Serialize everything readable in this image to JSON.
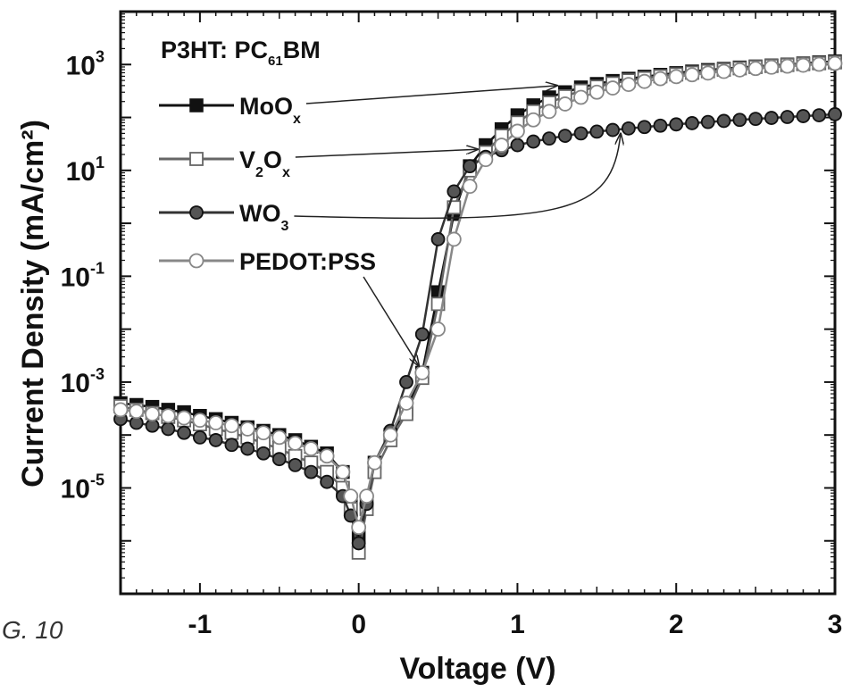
{
  "figure_label": "G. 10",
  "chart_data": {
    "type": "line",
    "title": "",
    "xlabel": "Voltage (V)",
    "ylabel": "Current Density (mA/cm²)",
    "xlim": [
      -1.5,
      3.0
    ],
    "ylim": [
      1e-07,
      10000
    ],
    "yscale": "log",
    "grid": false,
    "x_ticks": [
      -1,
      0,
      1,
      2,
      3
    ],
    "x_tick_labels": [
      "-1",
      "0",
      "1",
      "2",
      "3"
    ],
    "y_ticks": [
      1e-05,
      0.001,
      0.1,
      10,
      1000
    ],
    "y_tick_labels": [
      {
        "base": "10",
        "exp": "-5"
      },
      {
        "base": "10",
        "exp": "-3"
      },
      {
        "base": "10",
        "exp": "-1"
      },
      {
        "base": "10",
        "exp": "1"
      },
      {
        "base": "10",
        "exp": "3"
      }
    ],
    "legend_placement": "top-left",
    "legend_title": {
      "main": "P3HT: PC",
      "sub": "61",
      "tail": "BM"
    },
    "series": [
      {
        "name": "MoOx",
        "label_parts": {
          "main": "MoO",
          "sub": "x",
          "tail": ""
        },
        "marker": "square-filled",
        "color": "#111111",
        "x": [
          -1.5,
          -1.4,
          -1.3,
          -1.2,
          -1.1,
          -1.0,
          -0.9,
          -0.8,
          -0.7,
          -0.6,
          -0.5,
          -0.4,
          -0.3,
          -0.2,
          -0.1,
          -0.05,
          0.0,
          0.05,
          0.1,
          0.2,
          0.3,
          0.4,
          0.5,
          0.6,
          0.7,
          0.8,
          0.9,
          1.0,
          1.1,
          1.2,
          1.3,
          1.4,
          1.5,
          1.6,
          1.7,
          1.8,
          1.9,
          2.0,
          2.1,
          2.2,
          2.3,
          2.4,
          2.5,
          2.6,
          2.7,
          2.8,
          2.9,
          3.0
        ],
        "y": [
          0.0004,
          0.00037,
          0.00034,
          0.0003,
          0.00027,
          0.00023,
          0.0002,
          0.00017,
          0.00014,
          0.00012,
          0.0001,
          8e-05,
          6e-05,
          4.5e-05,
          2e-05,
          6e-06,
          1.2e-06,
          5e-06,
          3e-05,
          0.0001,
          0.0003,
          0.0015,
          0.05,
          1.5,
          12,
          30,
          60,
          110,
          170,
          240,
          300,
          370,
          430,
          490,
          540,
          590,
          640,
          690,
          740,
          790,
          830,
          880,
          920,
          960,
          1000,
          1050,
          1100,
          1150
        ]
      },
      {
        "name": "V2Ox",
        "label_parts": {
          "main": "V",
          "sub": "2",
          "main2": "O",
          "sub2": "x"
        },
        "marker": "square-open",
        "color": "#666666",
        "x": [
          -1.5,
          -1.4,
          -1.3,
          -1.2,
          -1.1,
          -1.0,
          -0.9,
          -0.8,
          -0.7,
          -0.6,
          -0.5,
          -0.4,
          -0.3,
          -0.2,
          -0.1,
          -0.05,
          0.0,
          0.05,
          0.1,
          0.2,
          0.3,
          0.4,
          0.5,
          0.6,
          0.7,
          0.8,
          0.9,
          1.0,
          1.1,
          1.2,
          1.3,
          1.4,
          1.5,
          1.6,
          1.7,
          1.8,
          1.9,
          2.0,
          2.1,
          2.2,
          2.3,
          2.4,
          2.5,
          2.6,
          2.7,
          2.8,
          2.9,
          3.0
        ],
        "y": [
          0.00035,
          0.0003,
          0.00026,
          0.00022,
          0.00019,
          0.00016,
          0.00013,
          0.00011,
          9e-05,
          7e-05,
          5.5e-05,
          4e-05,
          3e-05,
          2e-05,
          1e-05,
          4e-06,
          6e-07,
          4e-06,
          2e-05,
          8e-05,
          0.00025,
          0.0012,
          0.03,
          2,
          10,
          22,
          45,
          80,
          130,
          190,
          250,
          320,
          380,
          440,
          500,
          550,
          600,
          650,
          700,
          750,
          800,
          850,
          900,
          940,
          980,
          1020,
          1060,
          1100
        ]
      },
      {
        "name": "WO3",
        "label_parts": {
          "main": "WO",
          "sub": "3",
          "tail": ""
        },
        "marker": "circle-filled",
        "color": "#333333",
        "x": [
          -1.5,
          -1.4,
          -1.3,
          -1.2,
          -1.1,
          -1.0,
          -0.9,
          -0.8,
          -0.7,
          -0.6,
          -0.5,
          -0.4,
          -0.3,
          -0.2,
          -0.1,
          -0.05,
          0.0,
          0.05,
          0.1,
          0.2,
          0.3,
          0.4,
          0.5,
          0.6,
          0.7,
          0.8,
          0.9,
          1.0,
          1.1,
          1.2,
          1.3,
          1.4,
          1.5,
          1.6,
          1.7,
          1.8,
          1.9,
          2.0,
          2.1,
          2.2,
          2.3,
          2.4,
          2.5,
          2.6,
          2.7,
          2.8,
          2.9,
          3.0
        ],
        "y": [
          0.0002,
          0.00017,
          0.00015,
          0.00013,
          0.00011,
          9e-05,
          8e-05,
          6.5e-05,
          5.5e-05,
          4.5e-05,
          3.5e-05,
          2.7e-05,
          2e-05,
          1.3e-05,
          7e-06,
          3e-06,
          9e-07,
          5e-06,
          3e-05,
          0.00012,
          0.001,
          0.008,
          0.5,
          4,
          12,
          18,
          24,
          30,
          35,
          40,
          45,
          50,
          54,
          58,
          62,
          66,
          70,
          74,
          78,
          82,
          86,
          90,
          94,
          98,
          102,
          106,
          110,
          115
        ]
      },
      {
        "name": "PEDOT:PSS",
        "label_parts": {
          "main": "PEDOT:PSS",
          "sub": "",
          "tail": ""
        },
        "marker": "circle-open",
        "color": "#888888",
        "x": [
          -1.5,
          -1.4,
          -1.3,
          -1.2,
          -1.1,
          -1.0,
          -0.9,
          -0.8,
          -0.7,
          -0.6,
          -0.5,
          -0.4,
          -0.3,
          -0.2,
          -0.1,
          -0.05,
          0.0,
          0.05,
          0.1,
          0.2,
          0.3,
          0.4,
          0.5,
          0.6,
          0.7,
          0.8,
          0.9,
          1.0,
          1.1,
          1.2,
          1.3,
          1.4,
          1.5,
          1.6,
          1.7,
          1.8,
          1.9,
          2.0,
          2.1,
          2.2,
          2.3,
          2.4,
          2.5,
          2.6,
          2.7,
          2.8,
          2.9,
          3.0
        ],
        "y": [
          0.0003,
          0.00028,
          0.00025,
          0.00023,
          0.00021,
          0.00019,
          0.00017,
          0.00015,
          0.00013,
          0.00011,
          9e-05,
          7e-05,
          5.5e-05,
          4e-05,
          2e-05,
          7e-06,
          1.8e-06,
          7e-06,
          3e-05,
          0.0001,
          0.0004,
          0.0015,
          0.01,
          0.5,
          5,
          16,
          30,
          55,
          90,
          130,
          180,
          240,
          300,
          360,
          420,
          480,
          540,
          590,
          640,
          690,
          740,
          790,
          840,
          890,
          930,
          970,
          1010,
          1050
        ]
      }
    ],
    "annotations": [
      {
        "text_ref": "MoOx",
        "arrow_to": [
          1.25,
          400
        ]
      },
      {
        "text_ref": "V2Ox",
        "arrow_to": [
          0.75,
          25
        ]
      },
      {
        "text_ref": "WO3",
        "arrow_to": [
          1.65,
          50
        ]
      },
      {
        "text_ref": "PEDOT:PSS",
        "arrow_to": [
          0.38,
          0.002
        ]
      }
    ]
  }
}
